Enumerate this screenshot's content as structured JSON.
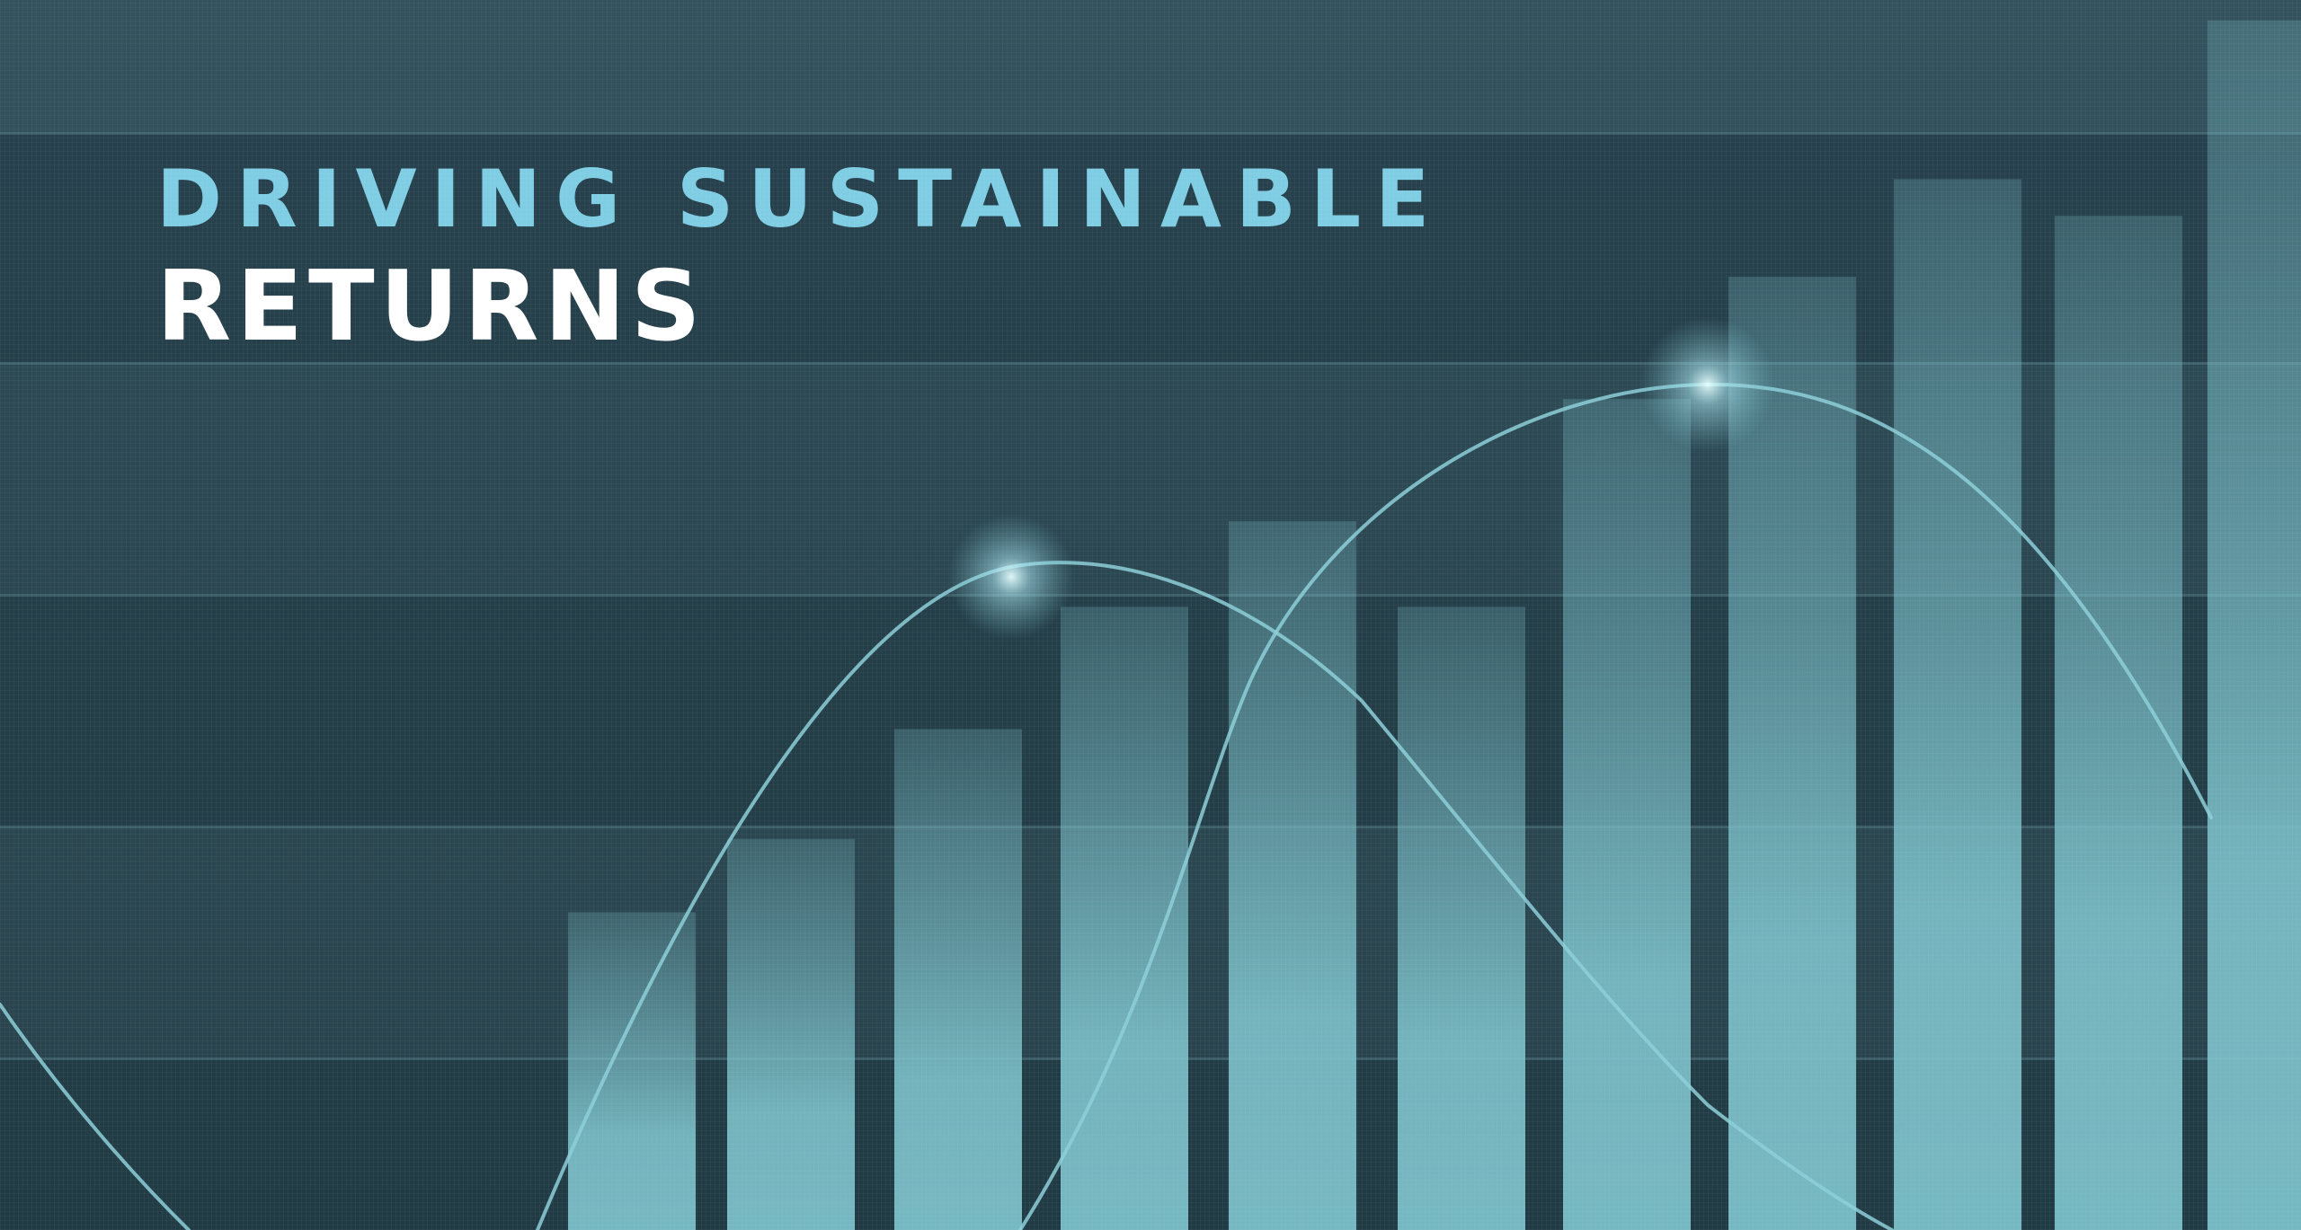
{
  "headline": {
    "line1": "DRIVING SUSTAINABLE",
    "line2": "RETURNS"
  },
  "colors": {
    "background": "#2a4550",
    "accent_text": "#7fcde3",
    "primary_text": "#ffffff",
    "bar": "#7ec3cc",
    "curve": "#8ccfd8"
  },
  "decorative_chart": {
    "bar_levels": [
      0.26,
      0.32,
      0.41,
      0.51,
      0.58,
      0.51,
      0.68,
      0.78,
      0.86,
      0.83,
      0.99
    ]
  }
}
